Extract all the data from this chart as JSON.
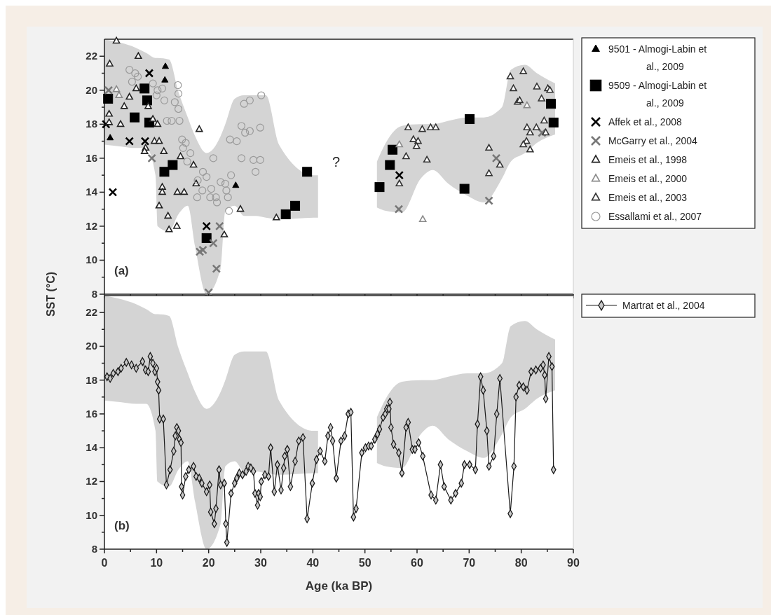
{
  "chart_data": [
    {
      "type": "scatter",
      "ylabel": "SST (°C)",
      "xlim": [
        0,
        90
      ],
      "ylim": [
        8,
        23
      ],
      "tick_labels": "y",
      "legend": "top right",
      "xticks": [
        0,
        {
          "value": 5,
          "label": null
        },
        10,
        {
          "value": 15,
          "label": null
        },
        20,
        {
          "value": 25,
          "label": null
        },
        30,
        {
          "value": 35,
          "label": null
        },
        40,
        {
          "value": 45,
          "label": null
        },
        50,
        {
          "value": 55,
          "label": null
        },
        60,
        {
          "value": 65,
          "label": null
        },
        70,
        {
          "value": 75,
          "label": null
        },
        80,
        {
          "value": 85,
          "label": null
        },
        90
      ],
      "yticks": [
        8,
        {
          "value": 9,
          "label": null
        },
        10,
        {
          "value": 11,
          "label": null
        },
        12,
        {
          "value": 13,
          "label": null
        },
        14,
        {
          "value": 15,
          "label": null
        },
        16,
        {
          "value": 17,
          "label": null
        },
        18,
        {
          "value": 19,
          "label": null
        },
        20,
        {
          "value": 21,
          "label": null
        },
        22
      ],
      "annotations": [
        "(a)",
        "?"
      ],
      "series": [
        {
          "type": "area",
          "color": "#d4d4d4",
          "x": [
            0,
            3,
            6,
            8,
            9.8,
            10.2,
            12.4,
            14.2,
            16,
            17.4,
            19.6,
            22.3,
            23.2,
            25,
            26.8,
            29,
            31,
            33.5,
            40.2,
            41,
            46,
            52.3,
            54,
            57.1,
            60.7,
            63,
            66,
            69.6,
            72.8,
            76.3,
            78,
            80.7,
            83,
            86.5
          ],
          "lower": [
            16.8,
            16.7,
            16.6,
            16.6,
            15,
            12,
            11.7,
            12.7,
            13.2,
            10.8,
            8,
            9.5,
            12.9,
            13.2,
            12.6,
            12.6,
            12.5,
            12.4,
            12.5,
            12.5,
            null,
            13.1,
            12.9,
            12.8,
            14.8,
            15.3,
            14.5,
            13.8,
            13.4,
            14.8,
            15.8,
            16.3,
            16.9,
            17.4
          ],
          "upper": [
            23,
            22.8,
            22.5,
            22.2,
            21.9,
            21.9,
            21.8,
            19.9,
            18.4,
            17.3,
            16.3,
            17.3,
            18,
            19.5,
            19.7,
            19.7,
            19.7,
            16.8,
            15,
            15,
            null,
            15.8,
            16.9,
            17.9,
            18,
            18,
            18.2,
            18.4,
            18.4,
            19,
            21.2,
            21.5,
            21,
            20.4
          ],
          "values": [
            null,
            null,
            null,
            null,
            null,
            null,
            null,
            null,
            null,
            null,
            null,
            null,
            null,
            null,
            null,
            null,
            null,
            null,
            null,
            null,
            null,
            null,
            null,
            null,
            null,
            null,
            null,
            null,
            null,
            null,
            null,
            null,
            null,
            null
          ]
        },
        {
          "name": "9501 - Almogi-Labin et al., 2009",
          "color": "#000000",
          "marker": "triangle",
          "x": [
            11.7,
            11.6,
            1.1,
            25.2
          ],
          "values": [
            21.4,
            20.6,
            17.2,
            14.4
          ]
        },
        {
          "name": "9509 - Almogi-Labin et al., 2009",
          "color": "#000000",
          "marker": "square",
          "x": [
            0.7,
            5.8,
            7.7,
            8.2,
            8.6,
            11.5,
            13.1,
            19.6,
            38.9,
            36.6,
            34.8,
            55.3,
            54.8,
            52.8,
            70.1,
            69.1,
            85.7,
            86.2
          ],
          "values": [
            19.5,
            18.4,
            20.1,
            19.4,
            18.1,
            15.2,
            15.6,
            11.3,
            15.2,
            13.2,
            12.7,
            16.5,
            15.6,
            14.3,
            18.3,
            14.2,
            19.2,
            18.1
          ]
        },
        {
          "name": "Affek et al., 2008",
          "color": "#000000",
          "marker": "cross",
          "x": [
            0.3,
            1.6,
            4.8,
            7.8,
            8.6,
            19.6,
            56.6
          ],
          "values": [
            18,
            14,
            17,
            17,
            21,
            12,
            15
          ]
        },
        {
          "name": "McGarry et al., 2004",
          "color": "#777777",
          "marker": "cross",
          "x": [
            0.8,
            9.1,
            22.1,
            18.3,
            18.9,
            20.9,
            21.5,
            20,
            56.5,
            75.2,
            73.8,
            84
          ],
          "values": [
            20,
            16,
            12,
            10.5,
            10.6,
            11,
            9.5,
            8.1,
            13,
            16,
            13.5,
            17.5
          ]
        },
        {
          "name": "Emeis et al., 1998",
          "color": "#222222",
          "marker": "triangle",
          "x": [
            2.3,
            6.5,
            1.0,
            3.8,
            4.8,
            0.9,
            0.9,
            3.1,
            6.1,
            8.4,
            9.3,
            10.2,
            9.6,
            10.5,
            7.9,
            7.7,
            11.4,
            14.6,
            17.1,
            18.2,
            17.6,
            11.1,
            11.1,
            14.0,
            15.3,
            10.5,
            12.2,
            12.4,
            13.9,
            23.0,
            26.1,
            33.0
          ],
          "values": [
            22.9,
            22.0,
            21.55,
            19.05,
            19.6,
            18.6,
            18.1,
            18.0,
            20.1,
            19.05,
            18.3,
            18.0,
            17.0,
            17.0,
            16.6,
            16.4,
            16.4,
            16.1,
            15.6,
            17.7,
            14.5,
            14.3,
            14.0,
            14.0,
            14.0,
            13.2,
            12.6,
            11.8,
            12.0,
            11.5,
            13.0,
            12.5
          ]
        },
        {
          "name": "Emeis et al., 2000",
          "color": "#8a8a8a",
          "marker": "triangle",
          "x": [
            2.3,
            2.8,
            56.6,
            81.1,
            61.1
          ],
          "values": [
            20.05,
            19.7,
            16.8,
            19.1,
            12.4
          ]
        },
        {
          "name": "Emeis et al., 2003",
          "color": "#333333",
          "marker": "triangle",
          "x": [
            58.3,
            61.0,
            62.6,
            63.6,
            59.3,
            60.2,
            59.9,
            57.9,
            61.9,
            56.6,
            73.8,
            75.9,
            73.8,
            77.9,
            80.4,
            78.5,
            79.3,
            79.7,
            83.0,
            85.1,
            85.5,
            83.9,
            84.4,
            81.1,
            81.7,
            82.9,
            84.7,
            81.0,
            80.4,
            81.7
          ],
          "values": [
            17.8,
            17.7,
            17.8,
            17.8,
            17.1,
            17.0,
            16.7,
            16.1,
            15.9,
            14.5,
            16.6,
            15.6,
            15.1,
            20.8,
            21.1,
            20.1,
            19.3,
            19.4,
            20.2,
            20.1,
            20.0,
            19.5,
            18.2,
            17.8,
            17.5,
            17.8,
            17.5,
            17.0,
            16.8,
            16.5
          ]
        },
        {
          "name": "Essallami et al., 2007",
          "color": "#9a9a9a",
          "marker": "circle",
          "x": [
            4.8,
            5.9,
            5.3,
            6.4,
            9.3,
            10.2,
            11.1,
            10.0,
            14.1,
            14.2,
            13.5,
            14.2,
            11.5,
            12.0,
            12.9,
            14.4,
            14.9,
            15.6,
            15.1,
            16.5,
            15.9,
            18.9,
            19.6,
            17.9,
            18.8,
            20.5,
            21.4,
            20.3,
            21.6,
            22.3,
            23.2,
            23.4,
            23.7,
            17.8,
            24.3,
            23.9,
            24.1,
            25.4,
            26.3,
            27.0,
            27.9,
            29.9,
            26.8,
            27.9,
            30.1,
            26.3,
            28.6,
            29.9,
            29.0,
            20.9
          ],
          "values": [
            21.2,
            21.0,
            20.5,
            20.8,
            20.4,
            20.0,
            20.1,
            19.7,
            20.3,
            19.8,
            19.3,
            18.9,
            19.4,
            18.2,
            18.2,
            18.2,
            17.1,
            16.9,
            16.6,
            16.3,
            15.8,
            15.2,
            14.9,
            14.7,
            14.1,
            14.2,
            13.7,
            13.7,
            13.4,
            14.6,
            14.5,
            14.1,
            13.7,
            13.7,
            15.0,
            12.9,
            17.1,
            17.0,
            17.9,
            17.5,
            17.6,
            17.8,
            19.2,
            19.4,
            19.7,
            16.0,
            15.9,
            15.9,
            15.2,
            16.0
          ]
        }
      ]
    },
    {
      "type": "line",
      "xlabel": "Age (ka BP)",
      "xlim": [
        0,
        90
      ],
      "ylim": [
        8,
        23
      ],
      "legend": "top right",
      "xticks": [
        0,
        {
          "value": 5,
          "label": null
        },
        10,
        {
          "value": 15,
          "label": null
        },
        20,
        {
          "value": 25,
          "label": null
        },
        30,
        {
          "value": 35,
          "label": null
        },
        40,
        {
          "value": 45,
          "label": null
        },
        50,
        {
          "value": 55,
          "label": null
        },
        60,
        {
          "value": 65,
          "label": null
        },
        70,
        {
          "value": 75,
          "label": null
        },
        80,
        {
          "value": 85,
          "label": null
        },
        90
      ],
      "yticks": [
        8,
        {
          "value": 9,
          "label": null
        },
        10,
        {
          "value": 11,
          "label": null
        },
        12,
        {
          "value": 13,
          "label": null
        },
        14,
        {
          "value": 15,
          "label": null
        },
        16,
        {
          "value": 17,
          "label": null
        },
        18,
        {
          "value": 19,
          "label": null
        },
        20,
        {
          "value": 21,
          "label": null
        },
        22
      ],
      "annotations": [
        "(b)"
      ],
      "series": [
        {
          "type": "area",
          "color": "#d4d4d4",
          "x": [
            0,
            3,
            6,
            8,
            9.8,
            10.2,
            12.4,
            14.2,
            16,
            17.4,
            19.6,
            22.3,
            23.2,
            25,
            26.8,
            29,
            31,
            33.5,
            40.2,
            41,
            46,
            52.3,
            54,
            57.1,
            60.7,
            63,
            66,
            69.6,
            72.8,
            76.3,
            78,
            80.7,
            83,
            86.5
          ],
          "lower": [
            16.8,
            16.7,
            16.6,
            16.6,
            15,
            12,
            11.7,
            12.7,
            13.2,
            10.8,
            8,
            9.5,
            12.9,
            13.2,
            12.6,
            12.6,
            12.5,
            12.4,
            12.5,
            12.5,
            null,
            13.1,
            12.9,
            12.8,
            14.8,
            15.3,
            14.5,
            13.8,
            13.4,
            14.8,
            15.8,
            16.3,
            16.9,
            17.4
          ],
          "upper": [
            23,
            22.8,
            22.5,
            22.2,
            21.9,
            21.9,
            21.8,
            19.9,
            18.4,
            17.3,
            16.3,
            17.3,
            18,
            19.5,
            19.7,
            19.7,
            19.7,
            16.8,
            15,
            15,
            null,
            15.8,
            16.9,
            17.9,
            18,
            18,
            18.2,
            18.4,
            18.4,
            19,
            21.2,
            21.5,
            21,
            20.4
          ],
          "values": [
            null,
            null,
            null,
            null,
            null,
            null,
            null,
            null,
            null,
            null,
            null,
            null,
            null,
            null,
            null,
            null,
            null,
            null,
            null,
            null,
            null,
            null,
            null,
            null,
            null,
            null,
            null,
            null,
            null,
            null,
            null,
            null,
            null,
            null
          ]
        },
        {
          "name": "Martrat et al., 2004",
          "color": "#1a1a1a",
          "marker": "diamond",
          "line_style": "solid",
          "x": [
            0.5,
            1.1,
            1.7,
            2.6,
            3.2,
            4.2,
            5.2,
            6.1,
            7.3,
            7.9,
            8.4,
            8.8,
            9.3,
            9.7,
            10.0,
            10.2,
            10.4,
            10.6,
            11.3,
            11.9,
            12.6,
            13.3,
            13.6,
            13.9,
            14.2,
            14.4,
            14.7,
            14.8,
            15.0,
            15.6,
            16.2,
            17.1,
            17.6,
            18.2,
            18.7,
            19.6,
            20.2,
            20.4,
            21.1,
            21.4,
            22.0,
            22.3,
            23.0,
            23.3,
            23.5,
            24.3,
            25.0,
            25.4,
            25.9,
            26.5,
            27.2,
            27.6,
            28.1,
            28.6,
            28.9,
            29.4,
            29.6,
            29.9,
            30.1,
            30.8,
            31.5,
            31.9,
            32.6,
            33.2,
            33.9,
            34.4,
            34.6,
            35.1,
            35.7,
            36.6,
            37.3,
            38.1,
            38.9,
            39.9,
            40.7,
            41.4,
            42.3,
            42.9,
            43.4,
            43.8,
            44.5,
            45.4,
            46.1,
            46.8,
            47.3,
            47.8,
            48.3,
            49.4,
            50.1,
            50.7,
            51.2,
            51.9,
            52.4,
            52.8,
            53.5,
            53.9,
            54.2,
            54.6,
            54.8,
            55.0,
            55.5,
            56.5,
            57.1,
            57.9,
            58.3,
            59.1,
            59.6,
            60.3,
            61.1,
            62.7,
            63.6,
            64.5,
            65.2,
            66.5,
            67.4,
            68.5,
            69.1,
            70.1,
            71.2,
            71.6,
            72.2,
            72.7,
            73.4,
            73.8,
            74.7,
            75.3,
            75.9,
            77.9,
            78.6,
            79.0,
            79.6,
            80.4,
            81.1,
            81.9,
            82.8,
            83.7,
            84.2,
            84.5,
            84.7,
            85.3,
            85.9,
            86.2
          ],
          "values": [
            18.2,
            18.1,
            18.4,
            18.5,
            18.7,
            19.05,
            18.9,
            18.7,
            19.1,
            18.6,
            18.5,
            19.4,
            19.0,
            18.5,
            18.7,
            17.9,
            17.4,
            15.7,
            15.7,
            11.8,
            12.7,
            13.8,
            14.7,
            15.2,
            15.0,
            14.5,
            14.3,
            11.7,
            11.2,
            12.3,
            12.7,
            12.9,
            12.3,
            12.2,
            11.9,
            11.4,
            11.8,
            10.2,
            9.5,
            10.4,
            12.7,
            11.8,
            11.9,
            9.5,
            8.4,
            11.3,
            11.9,
            12.2,
            12.5,
            12.4,
            12.6,
            12.9,
            12.8,
            12.6,
            11.3,
            10.6,
            11.3,
            11.1,
            12.0,
            12.4,
            12.3,
            14.0,
            11.4,
            13.0,
            11.5,
            12.8,
            13.5,
            13.9,
            11.7,
            13.2,
            14.4,
            14.6,
            9.8,
            11.9,
            13.3,
            13.8,
            13.2,
            14.7,
            15.2,
            14.4,
            12.2,
            14.4,
            14.7,
            16.0,
            16.1,
            9.9,
            10.4,
            13.7,
            14.0,
            14.1,
            14.1,
            14.5,
            14.8,
            15.1,
            15.8,
            16.0,
            16.3,
            16.3,
            16.7,
            15.2,
            14.2,
            13.7,
            12.5,
            15.2,
            15.5,
            13.9,
            13.9,
            14.3,
            13.5,
            11.2,
            10.9,
            13.0,
            11.7,
            10.9,
            11.3,
            11.9,
            13.0,
            13.0,
            12.7,
            15.4,
            18.2,
            17.4,
            15.0,
            12.9,
            13.5,
            16.0,
            18.1,
            10.1,
            12.9,
            17.0,
            17.7,
            17.6,
            17.4,
            18.5,
            18.6,
            18.7,
            18.9,
            18.3,
            16.9,
            19.4,
            18.8,
            12.7
          ]
        }
      ]
    }
  ]
}
